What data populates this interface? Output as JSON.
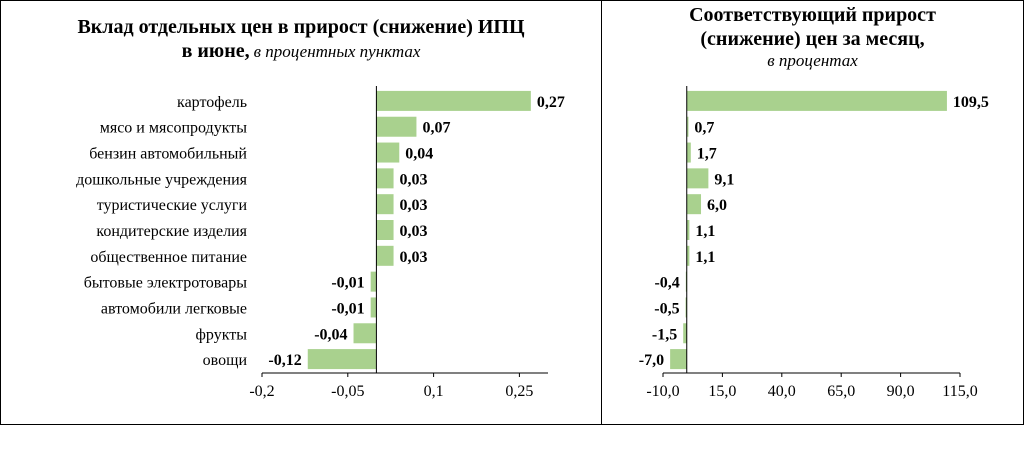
{
  "chart_data": [
    {
      "type": "bar",
      "orientation": "horizontal",
      "title": "Вклад отдельных цен в прирост (снижение) ИПЦ",
      "title_line2": "в июне,",
      "subtitle": "в процентных пунктах",
      "categories": [
        "картофель",
        "мясо и мясопродукты",
        "бензин автомобильный",
        "дошкольные учреждения",
        "туристические услуги",
        "кондитерские изделия",
        "общественное питание",
        "бытовые электротовары",
        "автомобили легковые",
        "фрукты",
        "овощи"
      ],
      "values": [
        0.27,
        0.07,
        0.04,
        0.03,
        0.03,
        0.03,
        0.03,
        -0.01,
        -0.01,
        -0.04,
        -0.12
      ],
      "value_labels": [
        "0,27",
        "0,07",
        "0,04",
        "0,03",
        "0,03",
        "0,03",
        "0,03",
        "-0,01",
        "-0,01",
        "-0,04",
        "-0,12"
      ],
      "xlim": [
        -0.2,
        0.3
      ],
      "ticks": [
        -0.2,
        -0.05,
        0.1,
        0.25
      ],
      "tick_labels": [
        "-0,2",
        "-0,05",
        "0,1",
        "0,25"
      ],
      "bar_color": "#a9d18e"
    },
    {
      "type": "bar",
      "orientation": "horizontal",
      "title": "Соответствующий прирост",
      "title_line2": "(снижение) цен за месяц,",
      "subtitle": "в процентах",
      "values": [
        109.5,
        0.7,
        1.7,
        9.1,
        6.0,
        1.1,
        1.1,
        -0.4,
        -0.5,
        -1.5,
        -7.0
      ],
      "value_labels": [
        "109,5",
        "0,7",
        "1,7",
        "9,1",
        "6,0",
        "1,1",
        "1,1",
        "-0,4",
        "-0,5",
        "-1,5",
        "-7,0"
      ],
      "xlim": [
        -10,
        115
      ],
      "ticks": [
        -10,
        15,
        40,
        65,
        90,
        115
      ],
      "tick_labels": [
        "-10,0",
        "15,0",
        "40,0",
        "65,0",
        "90,0",
        "115,0"
      ],
      "bar_color": "#a9d18e"
    }
  ]
}
